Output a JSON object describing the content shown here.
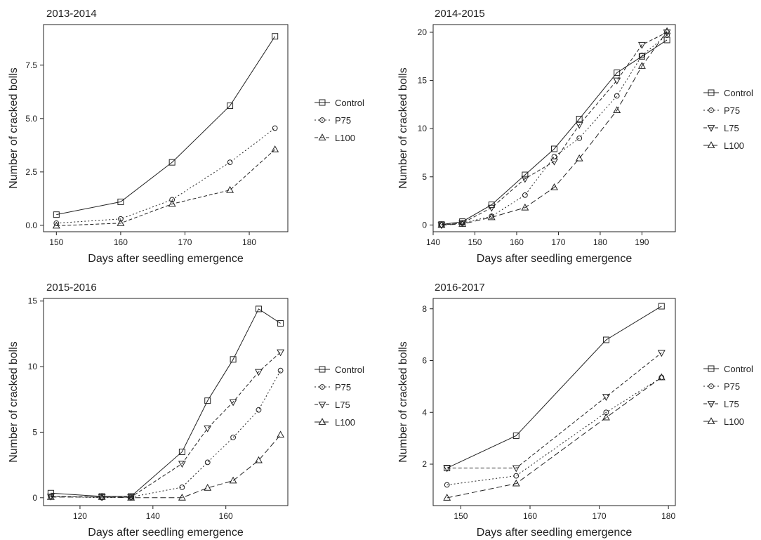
{
  "chart_data": [
    {
      "type": "line",
      "title": "2013-2014",
      "xlabel": "Days after seedling emergence",
      "ylabel": "Number of cracked bolls",
      "xlim": [
        148,
        186
      ],
      "ylim": [
        -0.3,
        9.4
      ],
      "xticks": [
        150,
        160,
        170,
        180
      ],
      "xtick_labels": [
        "150",
        "160",
        "170",
        "180"
      ],
      "yticks": [
        0,
        2.5,
        5,
        7.5
      ],
      "ytick_labels": [
        "0.0",
        "2.5",
        "5.0",
        "7.5"
      ],
      "grid": false,
      "legend_position": "right",
      "x": [
        150,
        160,
        168,
        177,
        184
      ],
      "series": [
        {
          "name": "Control",
          "marker": "square",
          "dash": "solid",
          "values": [
            0.5,
            1.1,
            2.95,
            5.6,
            8.85
          ]
        },
        {
          "name": "P75",
          "marker": "circle",
          "dash": "dotted",
          "values": [
            0.1,
            0.3,
            1.2,
            2.95,
            4.55
          ]
        },
        {
          "name": "L100",
          "marker": "triangle-up",
          "dash": "dashed",
          "values": [
            -0.02,
            0.1,
            1.0,
            1.65,
            3.55
          ]
        }
      ]
    },
    {
      "type": "line",
      "title": "2014-2015",
      "xlabel": "Days after seedling emergence",
      "ylabel": "Number of cracked bolls",
      "xlim": [
        140,
        198
      ],
      "ylim": [
        -0.7,
        20.8
      ],
      "xticks": [
        140,
        150,
        160,
        170,
        180,
        190
      ],
      "xtick_labels": [
        "140",
        "150",
        "160",
        "170",
        "180",
        "190"
      ],
      "yticks": [
        0,
        5,
        10,
        15,
        20
      ],
      "ytick_labels": [
        "0",
        "5",
        "10",
        "15",
        "20"
      ],
      "grid": false,
      "legend_position": "right",
      "x": [
        142,
        147,
        154,
        162,
        169,
        175,
        184,
        190,
        196
      ],
      "series": [
        {
          "name": "Control",
          "marker": "square",
          "dash": "solid",
          "values": [
            0.05,
            0.35,
            2.1,
            5.2,
            7.9,
            11.0,
            15.8,
            17.5,
            19.2
          ]
        },
        {
          "name": "P75",
          "marker": "circle",
          "dash": "dotted",
          "values": [
            0.0,
            0.2,
            0.9,
            3.1,
            7.1,
            9.0,
            13.4,
            17.6,
            19.7
          ]
        },
        {
          "name": "L75",
          "marker": "triangle-down",
          "dash": "dashed",
          "values": [
            0.0,
            0.2,
            1.8,
            4.8,
            6.6,
            10.4,
            15.0,
            18.7,
            20.0
          ]
        },
        {
          "name": "L100",
          "marker": "triangle-up",
          "dash": "longdash",
          "values": [
            0.0,
            0.1,
            0.8,
            1.8,
            3.9,
            6.9,
            11.9,
            16.5,
            20.1
          ]
        }
      ]
    },
    {
      "type": "line",
      "title": "2015-2016",
      "xlabel": "Days after seedling emergence",
      "ylabel": "Number of cracked bolls",
      "xlim": [
        110,
        177
      ],
      "ylim": [
        -0.6,
        15.2
      ],
      "xticks": [
        120,
        140,
        160
      ],
      "xtick_labels": [
        "120",
        "140",
        "160"
      ],
      "yticks": [
        0,
        5,
        10,
        15
      ],
      "ytick_labels": [
        "0",
        "5",
        "10",
        "15"
      ],
      "grid": false,
      "legend_position": "right",
      "x": [
        112,
        126,
        134,
        148,
        155,
        162,
        169,
        175
      ],
      "series": [
        {
          "name": "Control",
          "marker": "square",
          "dash": "solid",
          "values": [
            0.35,
            0.1,
            0.1,
            3.5,
            7.4,
            10.55,
            14.4,
            13.3
          ]
        },
        {
          "name": "P75",
          "marker": "circle",
          "dash": "dotted",
          "values": [
            0.1,
            0.0,
            0.05,
            0.8,
            2.7,
            4.6,
            6.7,
            9.7
          ]
        },
        {
          "name": "L75",
          "marker": "triangle-down",
          "dash": "dashed",
          "values": [
            0.1,
            0.05,
            0.05,
            2.6,
            5.3,
            7.3,
            9.6,
            11.1
          ]
        },
        {
          "name": "L100",
          "marker": "triangle-up",
          "dash": "longdash",
          "values": [
            0.05,
            0.05,
            0.0,
            0.0,
            0.75,
            1.3,
            2.85,
            4.8
          ]
        }
      ]
    },
    {
      "type": "line",
      "title": "2016-2017",
      "xlabel": "Days after seedling emergence",
      "ylabel": "Number of cracked bolls",
      "xlim": [
        146,
        181
      ],
      "ylim": [
        0.4,
        8.4
      ],
      "xticks": [
        150,
        160,
        170,
        180
      ],
      "xtick_labels": [
        "150",
        "160",
        "170",
        "180"
      ],
      "yticks": [
        2,
        4,
        6,
        8
      ],
      "ytick_labels": [
        "2",
        "4",
        "6",
        "8"
      ],
      "grid": false,
      "legend_position": "right",
      "x": [
        148,
        158,
        171,
        179
      ],
      "series": [
        {
          "name": "Control",
          "marker": "square",
          "dash": "solid",
          "values": [
            1.85,
            3.1,
            6.8,
            8.1
          ]
        },
        {
          "name": "P75",
          "marker": "circle",
          "dash": "dotted",
          "values": [
            1.2,
            1.55,
            4.0,
            5.35
          ]
        },
        {
          "name": "L75",
          "marker": "triangle-down",
          "dash": "dashed",
          "values": [
            1.85,
            1.85,
            4.6,
            6.3
          ]
        },
        {
          "name": "L100",
          "marker": "triangle-up",
          "dash": "longdash",
          "values": [
            0.7,
            1.25,
            3.8,
            5.35
          ]
        }
      ]
    }
  ]
}
